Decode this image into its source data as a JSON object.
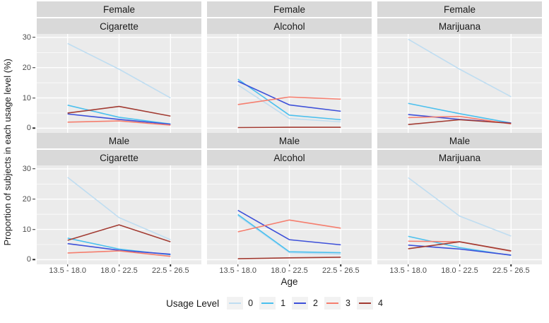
{
  "colors": {
    "panel_bg": "#EBEBEB",
    "strip_bg": "#D9D9D9",
    "gridline": "#FFFFFF",
    "legend_key_bg": "#F2F2F2",
    "tick_text": "#4D4D4D",
    "text": "#1A1A1A"
  },
  "chart_data": {
    "type": "line",
    "title": "",
    "xlabel": "Age",
    "ylabel": "Proportion of subjects in each usage level (%)",
    "x_categories": [
      "13.5 - 18.0",
      "18.0 - 22.5",
      "22.5 - 26.5"
    ],
    "yticks": [
      0,
      10,
      20,
      30
    ],
    "ylim": [
      -1.5,
      31.2
    ],
    "grid": "white major at 0/10/20/30, white minor at 5/15/25, vertical at category ticks",
    "legend_position": "bottom",
    "facet_rows": [
      "Female",
      "Male"
    ],
    "facet_cols": [
      "Cigarette",
      "Alcohol",
      "Marijuana"
    ],
    "legend": {
      "title": "Usage Level",
      "entries": [
        "0",
        "1",
        "2",
        "3",
        "4"
      ],
      "colors": [
        "#BFDDF1",
        "#4BC0EE",
        "#3D50D9",
        "#F57E6E",
        "#A23B32"
      ]
    },
    "panels": [
      {
        "facet_row": "Female",
        "facet_col": "Cigarette",
        "series": [
          {
            "name": "0",
            "values": [
              28.0,
              19.5,
              10.0
            ]
          },
          {
            "name": "1",
            "values": [
              7.6,
              3.6,
              1.4
            ]
          },
          {
            "name": "2",
            "values": [
              4.7,
              2.9,
              1.3
            ]
          },
          {
            "name": "3",
            "values": [
              2.0,
              2.4,
              1.0
            ]
          },
          {
            "name": "4",
            "values": [
              5.0,
              7.2,
              4.0
            ]
          }
        ]
      },
      {
        "facet_row": "Female",
        "facet_col": "Alcohol",
        "series": [
          {
            "name": "0",
            "values": [
              14.3,
              3.2,
              2.1
            ]
          },
          {
            "name": "1",
            "values": [
              16.2,
              4.3,
              2.8
            ]
          },
          {
            "name": "2",
            "values": [
              15.5,
              7.7,
              5.6
            ]
          },
          {
            "name": "3",
            "values": [
              7.8,
              10.3,
              9.6
            ]
          },
          {
            "name": "4",
            "values": [
              0.2,
              0.3,
              0.3
            ]
          }
        ]
      },
      {
        "facet_row": "Female",
        "facet_col": "Marijuana",
        "series": [
          {
            "name": "0",
            "values": [
              29.4,
              19.5,
              10.4
            ]
          },
          {
            "name": "1",
            "values": [
              8.2,
              4.8,
              1.7
            ]
          },
          {
            "name": "2",
            "values": [
              4.5,
              2.9,
              1.7
            ]
          },
          {
            "name": "3",
            "values": [
              3.5,
              3.9,
              1.4
            ]
          },
          {
            "name": "4",
            "values": [
              1.2,
              2.8,
              1.6
            ]
          }
        ]
      },
      {
        "facet_row": "Male",
        "facet_col": "Cigarette",
        "series": [
          {
            "name": "0",
            "values": [
              27.2,
              13.9,
              6.6
            ]
          },
          {
            "name": "1",
            "values": [
              7.1,
              3.5,
              1.6
            ]
          },
          {
            "name": "2",
            "values": [
              5.3,
              3.1,
              1.8
            ]
          },
          {
            "name": "3",
            "values": [
              2.2,
              2.9,
              1.1
            ]
          },
          {
            "name": "4",
            "values": [
              6.4,
              11.5,
              5.9
            ]
          }
        ]
      },
      {
        "facet_row": "Male",
        "facet_col": "Alcohol",
        "series": [
          {
            "name": "0",
            "values": [
              14.5,
              2.3,
              1.8
            ]
          },
          {
            "name": "1",
            "values": [
              14.9,
              2.6,
              2.3
            ]
          },
          {
            "name": "2",
            "values": [
              16.3,
              6.6,
              4.9
            ]
          },
          {
            "name": "3",
            "values": [
              9.2,
              13.1,
              10.4
            ]
          },
          {
            "name": "4",
            "values": [
              0.3,
              0.6,
              0.8
            ]
          }
        ]
      },
      {
        "facet_row": "Male",
        "facet_col": "Marijuana",
        "series": [
          {
            "name": "0",
            "values": [
              27.1,
              14.4,
              7.8
            ]
          },
          {
            "name": "1",
            "values": [
              7.7,
              4.0,
              1.4
            ]
          },
          {
            "name": "2",
            "values": [
              4.8,
              3.5,
              1.5
            ]
          },
          {
            "name": "3",
            "values": [
              6.1,
              5.9,
              2.8
            ]
          },
          {
            "name": "4",
            "values": [
              3.6,
              5.9,
              2.9
            ]
          }
        ]
      }
    ]
  }
}
